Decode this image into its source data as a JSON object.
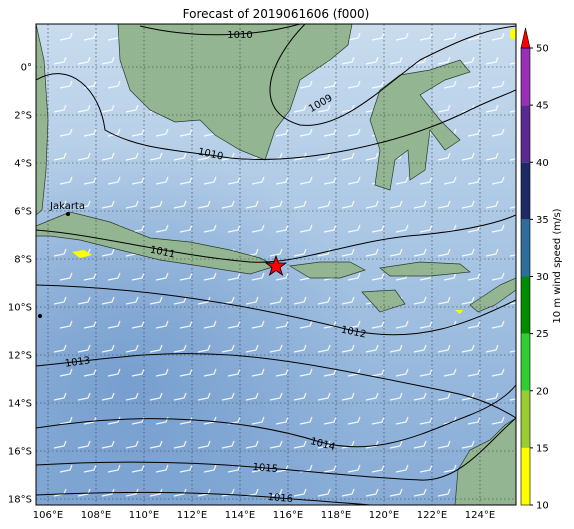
{
  "title": "Forecast of 2019061606 (f000)",
  "lat_labels": [
    "0°",
    "2°S",
    "4°S",
    "6°S",
    "8°S",
    "10°S",
    "12°S",
    "14°S",
    "16°S",
    "18°S"
  ],
  "lon_labels": [
    "106°E",
    "108°E",
    "110°E",
    "112°E",
    "114°E",
    "116°E",
    "118°E",
    "120°E",
    "122°E",
    "124°E"
  ],
  "contour_labels": [
    "1010",
    "1009",
    "1010",
    "1011",
    "1012",
    "1013",
    "1014",
    "1015",
    "1016"
  ],
  "places": [
    "Jakarta"
  ],
  "colorbar": {
    "label": "10 m wind speed (m/s)",
    "range": [
      10,
      50
    ],
    "ticks": [
      10,
      15,
      20,
      25,
      30,
      35,
      40,
      45,
      50
    ],
    "colors": [
      "#ffff00",
      "#9acd32",
      "#32cd32",
      "#008b00",
      "#2f6d9a",
      "#1c2a66",
      "#5b2a91",
      "#9b30b8"
    ],
    "extend_color": "#ff0000"
  }
}
